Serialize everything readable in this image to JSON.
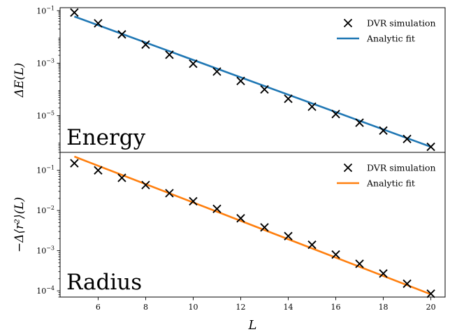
{
  "chart_data": [
    {
      "type": "line",
      "panel_label": "Energy",
      "ylabel": "ΔE(L)",
      "xlabel": "",
      "y_scale": "log",
      "ylim": [
        4e-07,
        0.13
      ],
      "xlim": [
        4.4,
        20.6
      ],
      "y_ticks": [
        {
          "value": 0.1,
          "base": "10",
          "exp": "−1"
        },
        {
          "value": 0.001,
          "base": "10",
          "exp": "−3"
        },
        {
          "value": 1e-05,
          "base": "10",
          "exp": "−5"
        }
      ],
      "legend_position": "upper right",
      "series": [
        {
          "name": "DVR simulation",
          "style": "markers",
          "marker": "x",
          "color": "#000000",
          "x": [
            5,
            6,
            7,
            8,
            9,
            10,
            11,
            12,
            13,
            14,
            15,
            16,
            17,
            18,
            19,
            20
          ],
          "y": [
            0.085,
            0.033,
            0.0125,
            0.0051,
            0.0021,
            0.00095,
            0.00048,
            0.00021,
            0.0001,
            4.4e-05,
            2.2e-05,
            1.15e-05,
            5.4e-06,
            2.7e-06,
            1.3e-06,
            6.5e-07
          ]
        },
        {
          "name": "Analytic fit",
          "style": "line",
          "color": "#1f77b4",
          "x": [
            5,
            20
          ],
          "y": [
            0.06,
            6.5e-07
          ]
        }
      ]
    },
    {
      "type": "line",
      "panel_label": "Radius",
      "ylabel": "−Δ⟨r²⟩(L)",
      "xlabel": "L",
      "y_scale": "log",
      "ylim": [
        7e-05,
        0.28
      ],
      "xlim": [
        4.4,
        20.6
      ],
      "x_ticks": [
        6,
        8,
        10,
        12,
        14,
        16,
        18,
        20
      ],
      "y_ticks": [
        {
          "value": 0.1,
          "base": "10",
          "exp": "−1"
        },
        {
          "value": 0.01,
          "base": "10",
          "exp": "−2"
        },
        {
          "value": 0.001,
          "base": "10",
          "exp": "−3"
        },
        {
          "value": 0.0001,
          "base": "10",
          "exp": "−4"
        }
      ],
      "legend_position": "upper right",
      "series": [
        {
          "name": "DVR simulation",
          "style": "markers",
          "marker": "x",
          "color": "#000000",
          "x": [
            5,
            6,
            7,
            8,
            9,
            10,
            11,
            12,
            13,
            14,
            15,
            16,
            17,
            18,
            19,
            20
          ],
          "y": [
            0.15,
            0.1,
            0.065,
            0.043,
            0.027,
            0.017,
            0.011,
            0.0064,
            0.0038,
            0.0023,
            0.0014,
            0.0008,
            0.00047,
            0.00027,
            0.00015,
            8.5e-05
          ]
        },
        {
          "name": "Analytic fit",
          "style": "line",
          "color": "#ff7f0e",
          "x": [
            5,
            20
          ],
          "y": [
            0.22,
            8.2e-05
          ]
        }
      ]
    }
  ]
}
